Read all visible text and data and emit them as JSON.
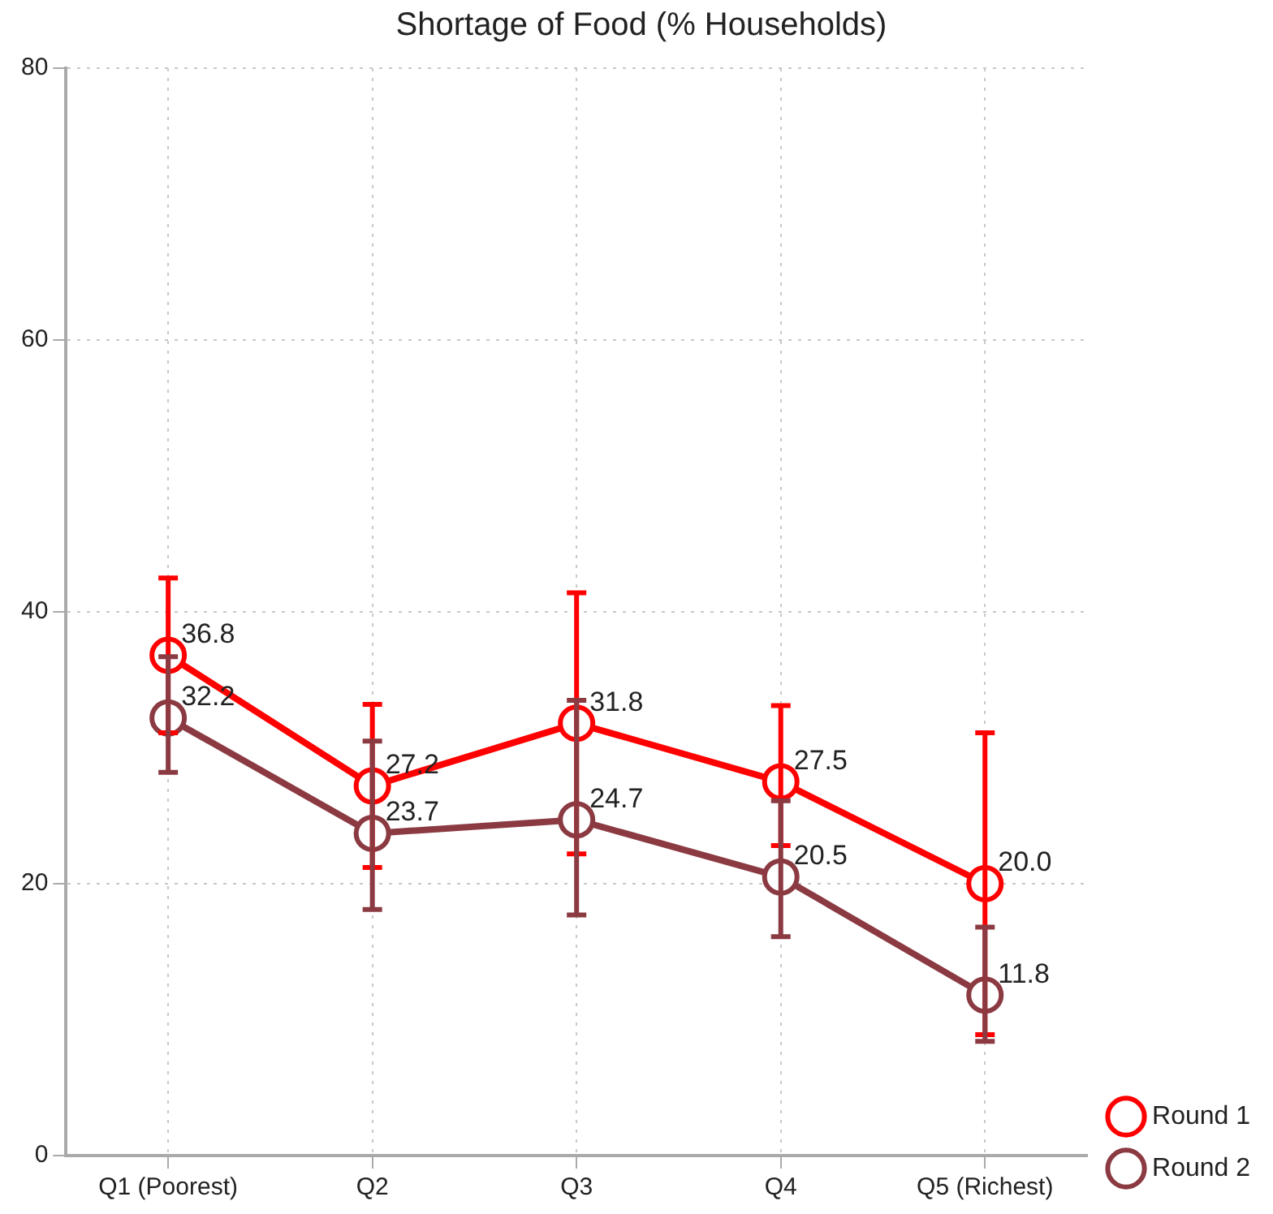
{
  "chart_data": {
    "type": "line",
    "title": "Shortage of Food (% Households)",
    "categories": [
      "Q1 (Poorest)",
      "Q2",
      "Q3",
      "Q4",
      "Q5 (Richest)"
    ],
    "series": [
      {
        "name": "Round 1",
        "color": "#ff0000",
        "values": [
          36.8,
          27.2,
          31.8,
          27.5,
          20.0
        ],
        "value_labels": [
          "36.8",
          "27.2",
          "31.8",
          "27.5",
          "20.0"
        ],
        "errors": [
          [
            31.1,
            42.5
          ],
          [
            21.2,
            33.2
          ],
          [
            22.2,
            41.4
          ],
          [
            22.8,
            33.1
          ],
          [
            8.9,
            31.1
          ]
        ]
      },
      {
        "name": "Round 2",
        "color": "#8b3a42",
        "values": [
          32.2,
          23.7,
          24.7,
          20.5,
          11.8
        ],
        "value_labels": [
          "32.2",
          "23.7",
          "24.7",
          "20.5",
          "11.8"
        ],
        "errors": [
          [
            28.2,
            36.7
          ],
          [
            18.1,
            30.5
          ],
          [
            17.7,
            33.5
          ],
          [
            16.1,
            26.1
          ],
          [
            8.4,
            16.8
          ]
        ]
      }
    ],
    "ylim": [
      0,
      80
    ],
    "yticks": [
      0,
      20,
      40,
      60,
      80
    ],
    "grid": true,
    "legend": "bottom right",
    "marker": "circle",
    "line_style": "solid"
  }
}
